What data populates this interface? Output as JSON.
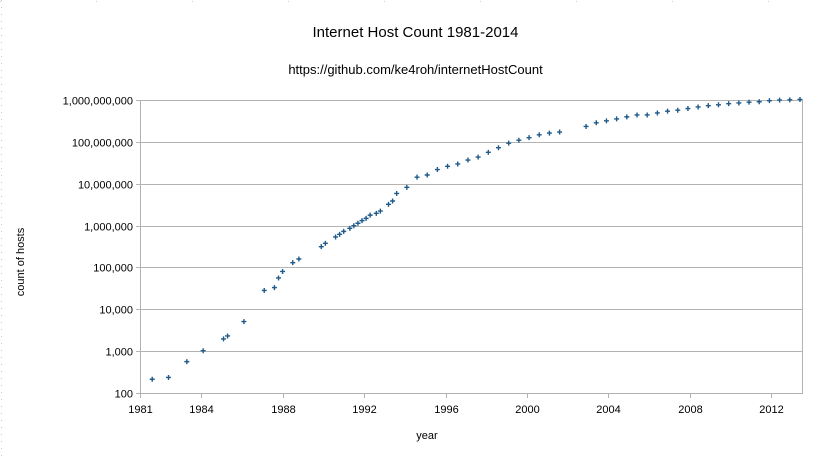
{
  "chart_data": {
    "type": "scatter",
    "title": "Internet Host Count 1981-2014",
    "subtitle": "https://github.com/ke4roh/internetHostCount",
    "xlabel": "year",
    "ylabel": "count of hosts",
    "xlim": [
      1981,
      2013.5
    ],
    "ylim": [
      100,
      1000000000
    ],
    "y_scale": "log",
    "grid": true,
    "x_ticks": [
      1981,
      1984,
      1988,
      1992,
      1996,
      2000,
      2004,
      2008,
      2012
    ],
    "x_tick_labels": [
      "1981",
      "1984",
      "1988",
      "1992",
      "1996",
      "2000",
      "2004",
      "2008",
      "2012"
    ],
    "y_ticks": [
      100,
      1000,
      10000,
      100000,
      1000000,
      10000000,
      100000000,
      1000000000
    ],
    "y_tick_labels": [
      "100",
      "1,000",
      "10,000",
      "100,000",
      "1,000,000",
      "10,000,000",
      "100,000,000",
      "1,000,000,000"
    ],
    "marker_color": "#1f5a8a",
    "marker": "plus",
    "series": [
      {
        "points": [
          [
            1981.6,
            213
          ],
          [
            1982.4,
            235
          ],
          [
            1983.3,
            562
          ],
          [
            1984.1,
            1024
          ],
          [
            1985.1,
            1961
          ],
          [
            1985.3,
            2308
          ],
          [
            1986.1,
            5089
          ],
          [
            1987.1,
            28174
          ],
          [
            1987.6,
            33000
          ],
          [
            1987.8,
            56000
          ],
          [
            1988.0,
            80000
          ],
          [
            1988.5,
            130000
          ],
          [
            1988.8,
            159000
          ],
          [
            1989.9,
            313000
          ],
          [
            1990.1,
            376000
          ],
          [
            1990.6,
            535000
          ],
          [
            1990.8,
            617000
          ],
          [
            1991.0,
            727000
          ],
          [
            1991.3,
            860000
          ],
          [
            1991.5,
            993000
          ],
          [
            1991.7,
            1136000
          ],
          [
            1991.9,
            1313000
          ],
          [
            1992.1,
            1486000
          ],
          [
            1992.3,
            1776000
          ],
          [
            1992.6,
            1961000
          ],
          [
            1992.8,
            2217000
          ],
          [
            1993.2,
            3212000
          ],
          [
            1993.4,
            3864000
          ],
          [
            1993.6,
            5846000
          ],
          [
            1994.1,
            8200000
          ],
          [
            1994.6,
            14352000
          ],
          [
            1995.1,
            16146000
          ],
          [
            1995.6,
            21819000
          ],
          [
            1996.1,
            26053000
          ],
          [
            1996.6,
            29670000
          ],
          [
            1997.1,
            36739000
          ],
          [
            1997.6,
            43230000
          ],
          [
            1998.1,
            56218000
          ],
          [
            1998.6,
            72398000
          ],
          [
            1999.1,
            93047000
          ],
          [
            1999.6,
            109574000
          ],
          [
            2000.1,
            125888000
          ],
          [
            2000.6,
            147345000
          ],
          [
            2001.1,
            162128000
          ],
          [
            2001.6,
            171638000
          ],
          [
            2002.9,
            233101000
          ],
          [
            2003.4,
            285139000
          ],
          [
            2003.9,
            317646000
          ],
          [
            2004.4,
            353284000
          ],
          [
            2004.9,
            394991000
          ],
          [
            2005.4,
            439286000
          ],
          [
            2005.9,
            439000000
          ],
          [
            2006.4,
            489774000
          ],
          [
            2006.9,
            541677000
          ],
          [
            2007.4,
            570937000
          ],
          [
            2007.9,
            625226000
          ],
          [
            2008.4,
            681064000
          ],
          [
            2008.9,
            732740000
          ],
          [
            2009.4,
            768914000
          ],
          [
            2009.9,
            818374000
          ],
          [
            2010.4,
            850000000
          ],
          [
            2010.9,
            888239000
          ],
          [
            2011.4,
            908585000
          ],
          [
            2011.9,
            963518000
          ],
          [
            2012.4,
            996230000
          ],
          [
            2012.9,
            1010251000
          ],
          [
            2013.4,
            1030000000
          ]
        ]
      }
    ]
  }
}
